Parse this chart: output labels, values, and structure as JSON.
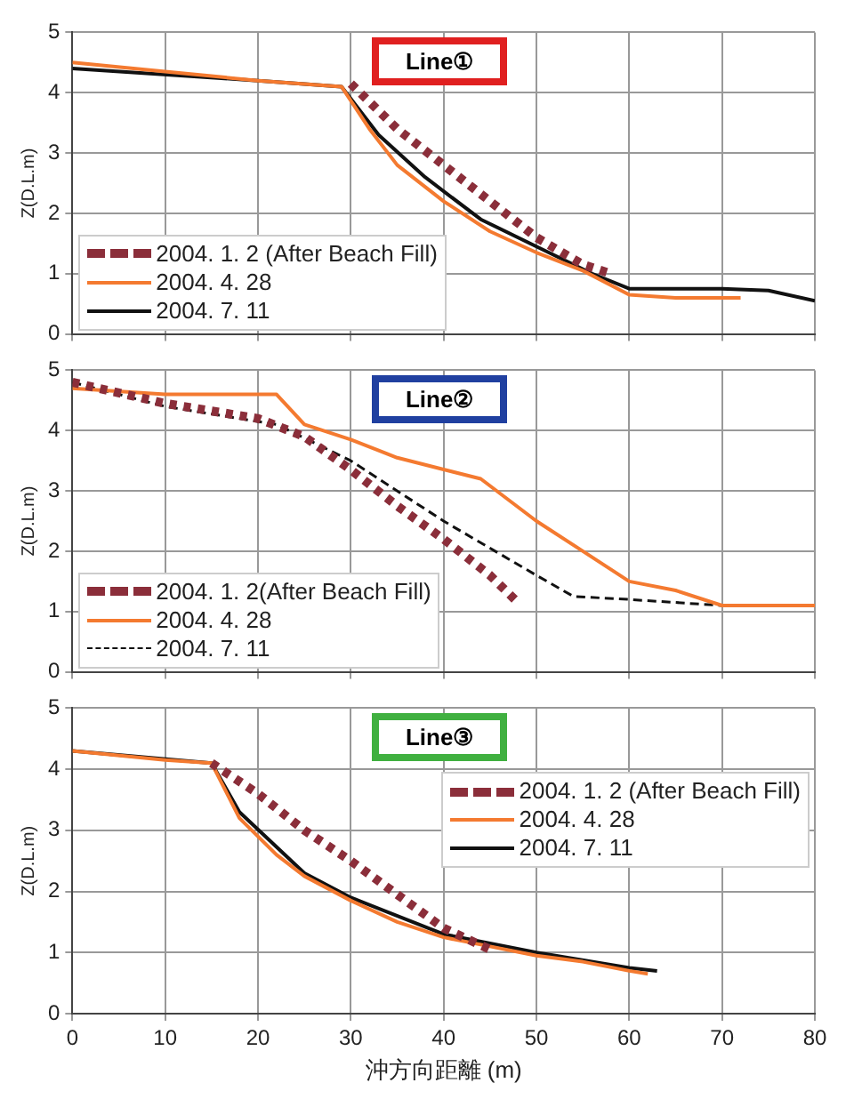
{
  "chart_data": [
    {
      "type": "line",
      "title": "Line①",
      "ylabel": "Z(D.L.m)",
      "xlim": [
        0,
        80
      ],
      "xticks": [
        0,
        10,
        20,
        30,
        40,
        50,
        60,
        70,
        80
      ],
      "ylim": [
        0,
        5
      ],
      "yticks": [
        0,
        1,
        2,
        3,
        4,
        5
      ],
      "grid": true,
      "legend": "bottom left",
      "tick_labels": "y",
      "marker": "none",
      "series": [
        {
          "name": "2004. 1. 2 (After Beach Fill)",
          "color": "#8b2e3a",
          "line_style": "dotted",
          "x": [
            30,
            35,
            40,
            45,
            50,
            55,
            58
          ],
          "values": [
            4.15,
            3.4,
            2.8,
            2.2,
            1.6,
            1.15,
            1.0
          ]
        },
        {
          "name": "2004. 4. 28",
          "color": "#f47a30",
          "line_style": "solid",
          "x": [
            0,
            10,
            20,
            29,
            32,
            35,
            40,
            45,
            50,
            55,
            60,
            65,
            72
          ],
          "values": [
            4.5,
            4.35,
            4.2,
            4.1,
            3.4,
            2.8,
            2.2,
            1.7,
            1.35,
            1.05,
            0.65,
            0.6,
            0.6
          ]
        },
        {
          "name": "2004. 7. 11",
          "color": "#111111",
          "line_style": "solid",
          "x": [
            0,
            20,
            29,
            33,
            38,
            44,
            50,
            56,
            60,
            70,
            75,
            80
          ],
          "values": [
            4.4,
            4.2,
            4.1,
            3.3,
            2.6,
            1.9,
            1.45,
            1.0,
            0.75,
            0.75,
            0.72,
            0.55
          ]
        }
      ]
    },
    {
      "type": "line",
      "title": "Line②",
      "ylabel": "Z(D.L.m)",
      "xlim": [
        0,
        80
      ],
      "xticks": [
        0,
        10,
        20,
        30,
        40,
        50,
        60,
        70,
        80
      ],
      "ylim": [
        0,
        5
      ],
      "yticks": [
        0,
        1,
        2,
        3,
        4,
        5
      ],
      "grid": true,
      "legend": "bottom left",
      "tick_labels": "y",
      "marker": "none",
      "series": [
        {
          "name": "2004. 1. 2(After Beach Fill)",
          "color": "#8b2e3a",
          "line_style": "dotted",
          "x": [
            0,
            10,
            20,
            25,
            30,
            35,
            40,
            45,
            48
          ],
          "values": [
            4.8,
            4.45,
            4.2,
            3.9,
            3.35,
            2.75,
            2.2,
            1.6,
            1.15
          ]
        },
        {
          "name": "2004. 4. 28",
          "color": "#f47a30",
          "line_style": "solid",
          "x": [
            0,
            10,
            22,
            25,
            30,
            35,
            44,
            50,
            55,
            60,
            65,
            70,
            80
          ],
          "values": [
            4.7,
            4.6,
            4.6,
            4.1,
            3.85,
            3.55,
            3.2,
            2.5,
            2.0,
            1.5,
            1.35,
            1.1,
            1.1
          ]
        },
        {
          "name": "2004. 7. 11",
          "color": "#111111",
          "line_style": "dashed",
          "x": [
            0,
            10,
            22,
            30,
            40,
            50,
            54,
            60,
            70
          ],
          "values": [
            4.8,
            4.4,
            4.1,
            3.5,
            2.5,
            1.6,
            1.25,
            1.2,
            1.1
          ]
        }
      ]
    },
    {
      "type": "line",
      "title": "Line③",
      "ylabel": "Z(D.L.m)",
      "xlabel": "沖方向距離 (m)",
      "xlim": [
        0,
        80
      ],
      "xticks": [
        0,
        10,
        20,
        30,
        40,
        50,
        60,
        70,
        80
      ],
      "ylim": [
        0,
        5
      ],
      "yticks": [
        0,
        1,
        2,
        3,
        4,
        5
      ],
      "grid": true,
      "legend": "top right",
      "marker": "none",
      "series": [
        {
          "name": "2004. 1. 2 (After Beach Fill)",
          "color": "#8b2e3a",
          "line_style": "dotted",
          "x": [
            15,
            20,
            25,
            30,
            35,
            40,
            45
          ],
          "values": [
            4.1,
            3.6,
            3.0,
            2.5,
            1.95,
            1.4,
            1.05
          ]
        },
        {
          "name": "2004. 4. 28",
          "color": "#f47a30",
          "line_style": "solid",
          "x": [
            0,
            10,
            15,
            16,
            18,
            22,
            25,
            30,
            35,
            40,
            45,
            50,
            55,
            60,
            62
          ],
          "values": [
            4.3,
            4.15,
            4.1,
            3.8,
            3.2,
            2.6,
            2.25,
            1.85,
            1.5,
            1.25,
            1.1,
            0.95,
            0.85,
            0.7,
            0.65
          ]
        },
        {
          "name": "2004. 7. 11",
          "color": "#111111",
          "line_style": "solid",
          "x": [
            0,
            15,
            18,
            25,
            30,
            40,
            50,
            60,
            63
          ],
          "values": [
            4.3,
            4.1,
            3.3,
            2.3,
            1.9,
            1.3,
            1.0,
            0.75,
            0.7
          ]
        }
      ]
    }
  ]
}
